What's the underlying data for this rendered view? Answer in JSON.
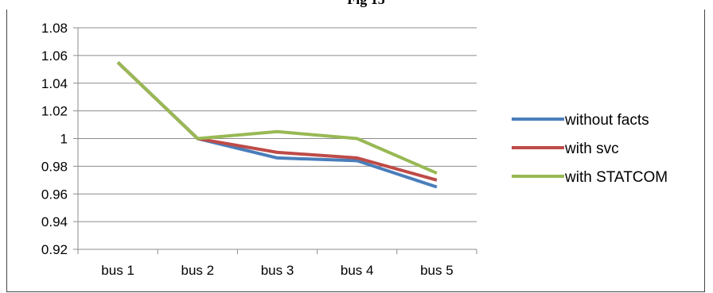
{
  "caption": "Fig 15",
  "chart_data": {
    "type": "line",
    "categories": [
      "bus 1",
      "bus 2",
      "bus 3",
      "bus 4",
      "bus 5"
    ],
    "ylim": [
      0.92,
      1.08
    ],
    "yticks": [
      "0.92",
      "0.94",
      "0.96",
      "0.98",
      "1",
      "1.02",
      "1.04",
      "1.06",
      "1.08"
    ],
    "grid": true,
    "legend_position": "right",
    "series": [
      {
        "name": "without facts",
        "color": "#4A7EBB",
        "values": [
          1.055,
          1.0,
          0.986,
          0.984,
          0.965
        ]
      },
      {
        "name": "with svc",
        "color": "#BE4B48",
        "values": [
          1.055,
          1.0,
          0.99,
          0.986,
          0.97
        ]
      },
      {
        "name": "with STATCOM",
        "color": "#98B954",
        "values": [
          1.055,
          1.0,
          1.005,
          1.0,
          0.975
        ]
      }
    ]
  }
}
